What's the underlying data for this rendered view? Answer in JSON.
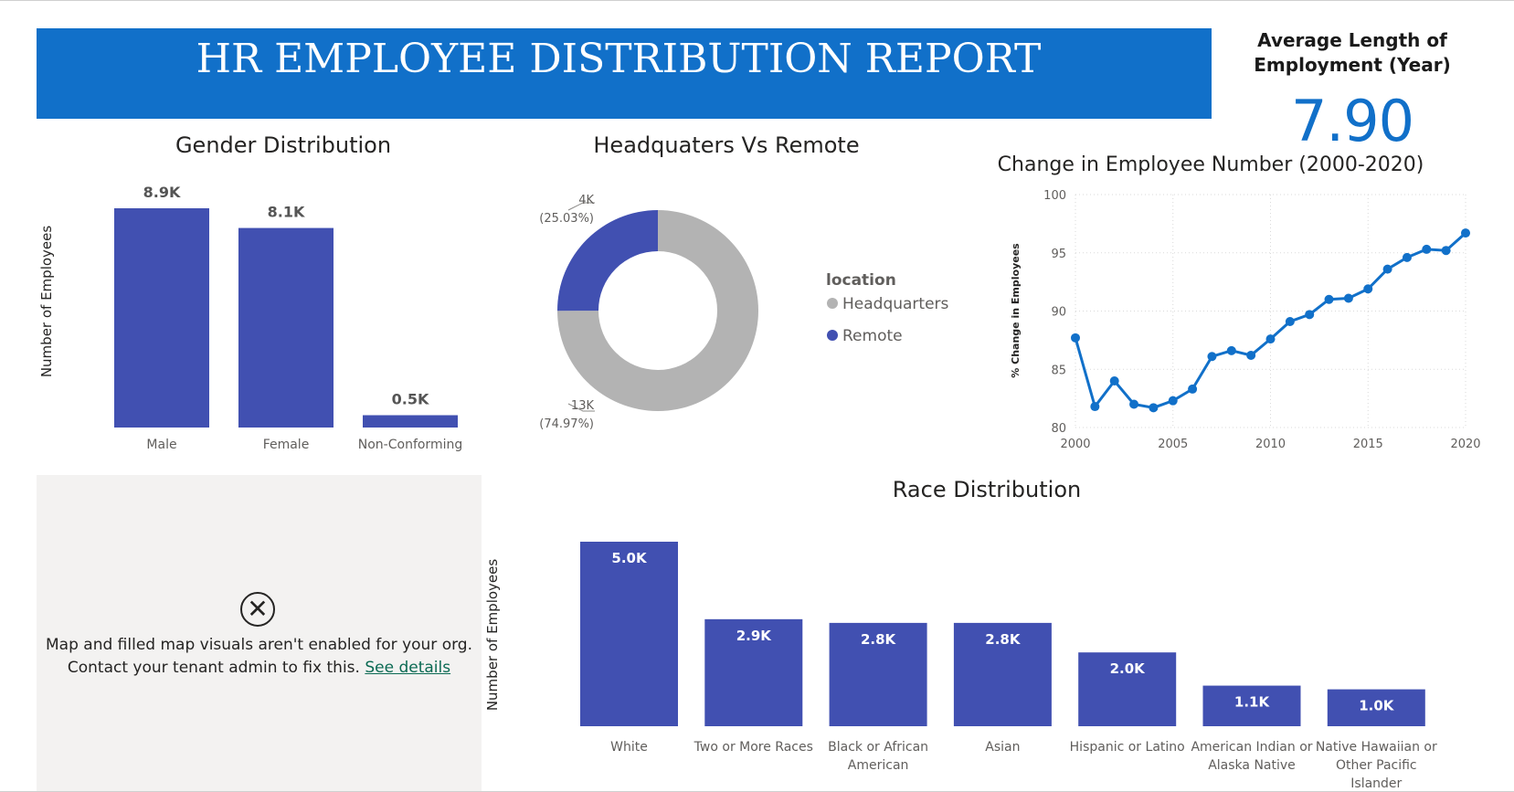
{
  "report": {
    "title": "HR EMPLOYEE DISTRIBUTION REPORT"
  },
  "kpi": {
    "label_line1": "Average Length of",
    "label_line2": "Employment (Year)",
    "value": "7.90"
  },
  "gender_chart": {
    "title": "Gender Distribution",
    "ylabel": "Number of Employees"
  },
  "location_chart": {
    "title": "Headquaters Vs Remote",
    "legend_title": "location"
  },
  "trend_chart": {
    "title": "Change in Employee Number (2000-2020)",
    "ylabel": "% Change in Employees"
  },
  "race_chart": {
    "title": "Race Distribution",
    "ylabel": "Number of Employees"
  },
  "map_visual": {
    "message_line1": "Map and filled map visuals aren't enabled for your org.",
    "message_line2": "Contact your tenant admin to fix this.",
    "link_text": "See details"
  },
  "colors": {
    "banner": "#1170c9",
    "bar": "#4150b1",
    "line": "#1170c9",
    "headquarters": "#b3b3b3",
    "remote": "#4150b1"
  },
  "chart_data": [
    {
      "type": "bar",
      "title": "Gender Distribution",
      "ylabel": "Number of Employees",
      "categories": [
        "Male",
        "Female",
        "Non-Conforming"
      ],
      "values": [
        8900,
        8100,
        500
      ],
      "labels": [
        "8.9K",
        "8.1K",
        "0.5K"
      ],
      "ylim": [
        0,
        8900
      ]
    },
    {
      "type": "pie",
      "title": "Headquaters Vs Remote",
      "legend_title": "location",
      "slices": [
        {
          "name": "Headquarters",
          "value": 13,
          "label": "13K",
          "percent": "(74.97%)"
        },
        {
          "name": "Remote",
          "value": 4,
          "label": "4K",
          "percent": "(25.03%)"
        }
      ],
      "percentages": [
        74.97,
        25.03
      ],
      "legend_placement": "right"
    },
    {
      "type": "line",
      "title": "Change in Employee Number (2000-2020)",
      "ylabel": "% Change in Employees",
      "x": [
        2000,
        2001,
        2002,
        2003,
        2004,
        2005,
        2006,
        2007,
        2008,
        2009,
        2010,
        2011,
        2012,
        2013,
        2014,
        2015,
        2016,
        2017,
        2018,
        2019,
        2020
      ],
      "y": [
        87.7,
        81.8,
        84.0,
        82.0,
        81.7,
        82.3,
        83.3,
        86.1,
        86.6,
        86.2,
        87.6,
        89.1,
        89.7,
        91.0,
        91.1,
        91.9,
        93.6,
        94.6,
        95.3,
        95.2,
        96.7
      ],
      "xticks": [
        2000,
        2005,
        2010,
        2015,
        2020
      ],
      "yticks": [
        80,
        85,
        90,
        95,
        100
      ],
      "xlim": [
        2000,
        2020
      ],
      "ylim": [
        80,
        100
      ],
      "grid": true
    },
    {
      "type": "bar",
      "title": "Race Distribution",
      "ylabel": "Number of Employees",
      "categories": [
        "White",
        "Two or More Races",
        "Black or African American",
        "Asian",
        "Hispanic or Latino",
        "American Indian or Alaska Native",
        "Native Hawaiian or Other Pacific Islander"
      ],
      "category_lines": [
        [
          "White"
        ],
        [
          "Two or More Races"
        ],
        [
          "Black or African",
          "American"
        ],
        [
          "Asian"
        ],
        [
          "Hispanic or Latino"
        ],
        [
          "American Indian or",
          "Alaska Native"
        ],
        [
          "Native Hawaiian or",
          "Other Pacific",
          "Islander"
        ]
      ],
      "values": [
        5000,
        2900,
        2800,
        2800,
        2000,
        1100,
        1000
      ],
      "labels": [
        "5.0K",
        "2.9K",
        "2.8K",
        "2.8K",
        "2.0K",
        "1.1K",
        "1.0K"
      ],
      "ylim": [
        0,
        5000
      ]
    }
  ]
}
